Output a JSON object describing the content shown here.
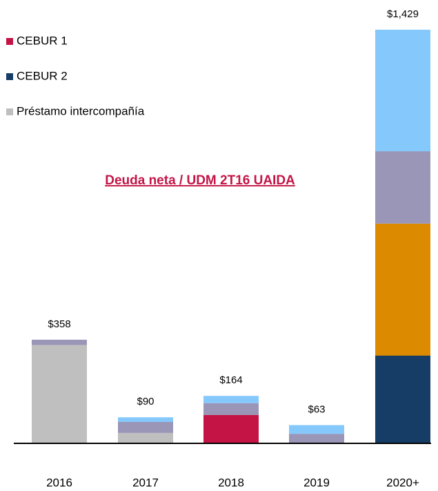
{
  "chart_data": {
    "type": "stacked_bar",
    "annotation": "Deuda neta / UDM 2T16 UAIDA",
    "categories": [
      "2016",
      "2017",
      "2018",
      "2019",
      "2020+"
    ],
    "series": [
      {
        "name": "Préstamo intercompañía",
        "color": "#bfbfbf",
        "values": [
          340,
          36,
          0,
          0,
          0
        ]
      },
      {
        "name": "CEBUR 1",
        "color": "#c41446",
        "values": [
          0,
          0,
          98,
          0,
          0
        ]
      },
      {
        "name": "CEBUR 2",
        "color": "#163d66",
        "values": [
          0,
          0,
          0,
          0,
          303
        ]
      },
      {
        "color": "#dc8a00",
        "values": [
          0,
          0,
          0,
          0,
          456
        ]
      },
      {
        "color": "#9a96b8",
        "values": [
          18,
          38,
          41,
          33,
          250
        ]
      },
      {
        "color": "#85c8fc",
        "values": [
          0,
          16,
          25,
          30,
          420
        ]
      }
    ],
    "totals": [
      358,
      90,
      164,
      63,
      1429
    ],
    "total_labels": [
      "$358",
      "$90",
      "$164",
      "$63",
      "$1,429"
    ],
    "legend_order": [
      1,
      2,
      0
    ]
  }
}
